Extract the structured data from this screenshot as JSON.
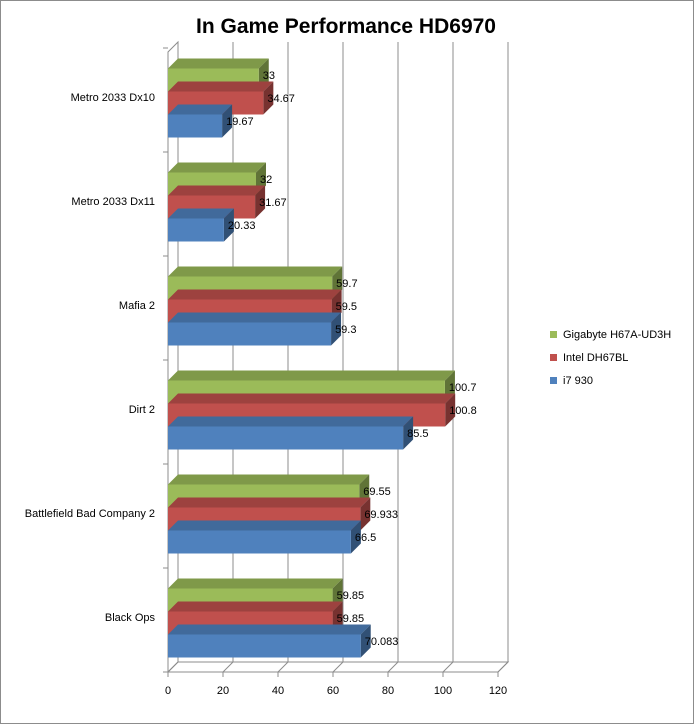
{
  "chart_data": {
    "type": "bar",
    "orientation": "horizontal",
    "title": "In Game Performance HD6970",
    "categories": [
      "Metro 2033 Dx10",
      "Metro 2033 Dx11",
      "Mafia 2",
      "Dirt 2",
      "Battlefield Bad Company 2",
      "Black Ops"
    ],
    "series": [
      {
        "name": "Gigabyte H67A-UD3H",
        "color": "#9BBB59",
        "values": [
          33,
          32,
          59.7,
          100.7,
          69.55,
          59.85
        ],
        "labels": [
          "33",
          "32",
          "59.7",
          "100.7",
          "69.55",
          "59.85"
        ]
      },
      {
        "name": "Intel DH67BL",
        "color": "#C0504D",
        "values": [
          34.67,
          31.67,
          59.5,
          100.8,
          69.933,
          59.85
        ],
        "labels": [
          "34.67",
          "31.67",
          "59.5",
          "100.8",
          "69.933",
          "59.85"
        ]
      },
      {
        "name": "i7 930",
        "color": "#4F81BD",
        "values": [
          19.67,
          20.33,
          59.3,
          85.5,
          66.5,
          70.083
        ],
        "labels": [
          "19.67",
          "20.33",
          "59.3",
          "85.5",
          "66.5",
          "70.083"
        ]
      }
    ],
    "xlim": [
      0,
      120
    ],
    "xticks": [
      0,
      20,
      40,
      60,
      80,
      100,
      120
    ],
    "xtick_labels": [
      "0",
      "20",
      "40",
      "60",
      "80",
      "100",
      "120"
    ],
    "grid": true,
    "legend": "right",
    "style": "3d-clustered"
  }
}
